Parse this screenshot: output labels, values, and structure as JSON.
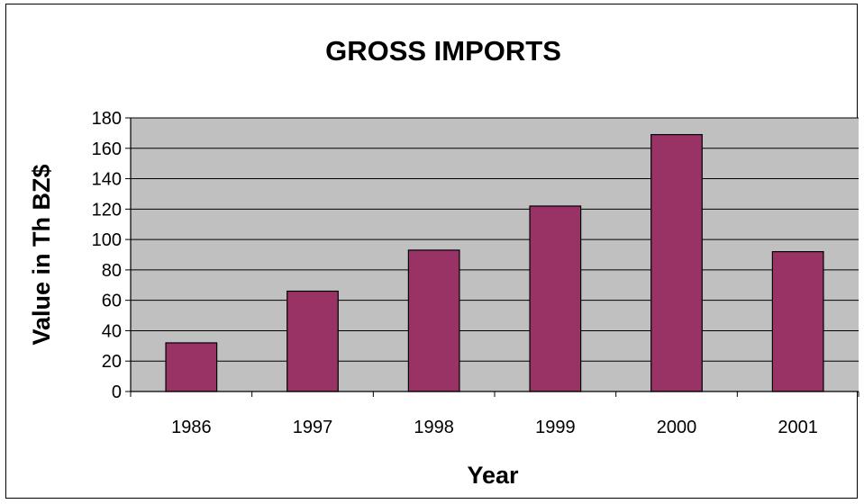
{
  "chart_data": {
    "type": "bar",
    "title": "GROSS IMPORTS",
    "xlabel": "Year",
    "ylabel": "Value in Th BZ$",
    "categories": [
      "1986",
      "1997",
      "1998",
      "1999",
      "2000",
      "2001"
    ],
    "values": [
      32,
      66,
      93,
      122,
      169,
      92
    ],
    "ylim": [
      0,
      180
    ],
    "yticks": [
      0,
      20,
      40,
      60,
      80,
      100,
      120,
      140,
      160,
      180
    ],
    "grid": true,
    "legend": "none",
    "colors": {
      "bar": "#993366",
      "plot_background": "#c0c0c0",
      "grid": "#000000"
    }
  }
}
